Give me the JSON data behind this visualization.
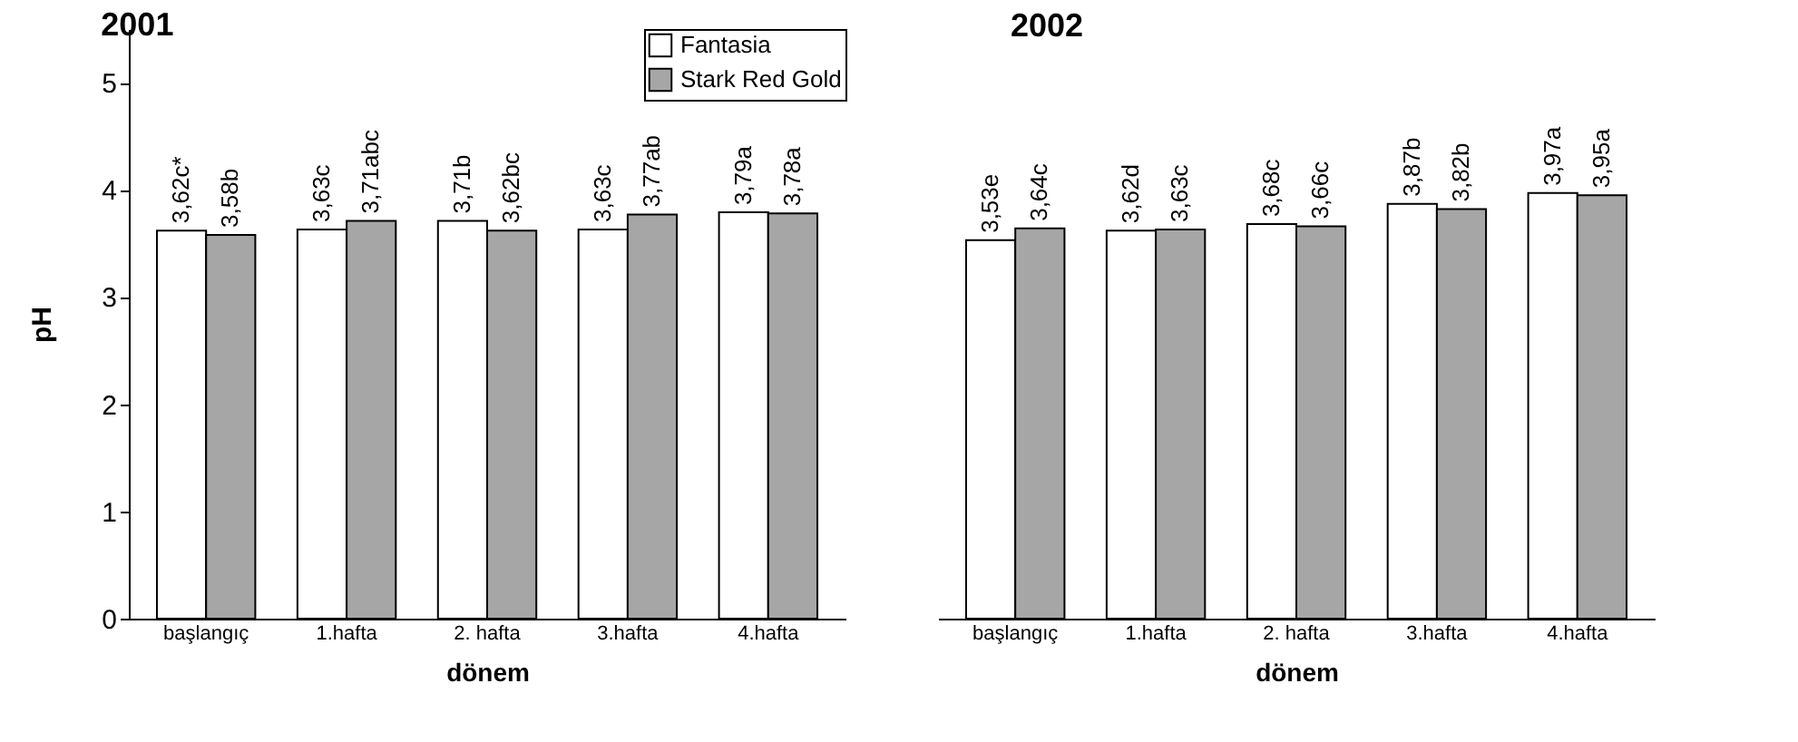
{
  "chart_data": [
    {
      "type": "bar",
      "title": "2001",
      "xlabel": "dönem",
      "ylabel": "pH",
      "categories": [
        "başlangıç",
        "1.hafta",
        "2. hafta",
        "3.hafta",
        "4.hafta"
      ],
      "ylim": [
        0,
        5.5
      ],
      "yticks": [
        0,
        1,
        2,
        3,
        4,
        5
      ],
      "legend": "top right",
      "series": [
        {
          "name": "Fantasia",
          "color": "#ffffff",
          "values": [
            3.62,
            3.63,
            3.71,
            3.63,
            3.79
          ],
          "value_labels": [
            "3,62c*",
            "3,63c",
            "3,71b",
            "3,63c",
            "3,79a"
          ]
        },
        {
          "name": "Stark Red Gold",
          "color": "#a6a6a6",
          "values": [
            3.58,
            3.71,
            3.62,
            3.77,
            3.78
          ],
          "value_labels": [
            "3,58b",
            "3,71abc",
            "3,62bc",
            "3,77ab",
            "3,78a"
          ]
        }
      ]
    },
    {
      "type": "bar",
      "title": "2002",
      "xlabel": "dönem",
      "categories": [
        "başlangıç",
        "1.hafta",
        "2. hafta",
        "3.hafta",
        "4.hafta"
      ],
      "tick_labels": "x",
      "series": [
        {
          "color": "#ffffff",
          "values": [
            3.53,
            3.62,
            3.68,
            3.87,
            3.97
          ],
          "value_labels": [
            "3,53e",
            "3,62d",
            "3,68c",
            "3,87b",
            "3,97a"
          ]
        },
        {
          "color": "#a6a6a6",
          "values": [
            3.64,
            3.63,
            3.66,
            3.82,
            3.95
          ],
          "value_labels": [
            "3,64c",
            "3,63c",
            "3,66c",
            "3,82b",
            "3,95a"
          ]
        }
      ]
    }
  ]
}
